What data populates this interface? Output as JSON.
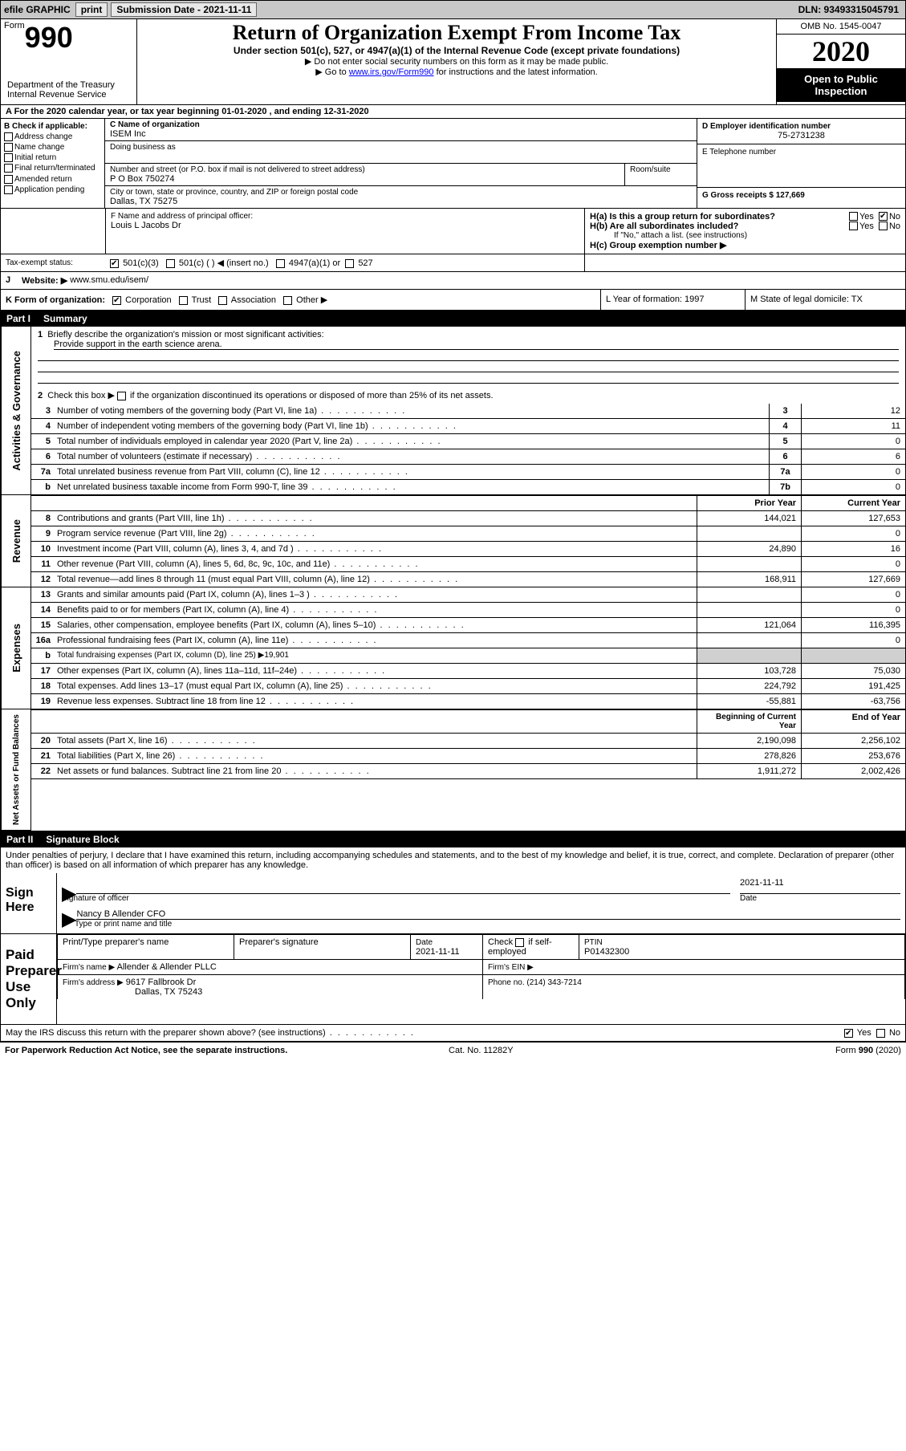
{
  "topbar": {
    "efile": "efile GRAPHIC",
    "print": "print",
    "subdate_label": "Submission Date - 2021-11-11",
    "dln": "DLN: 93493315045791"
  },
  "header": {
    "form_word": "Form",
    "form_num": "990",
    "dept": "Department of the Treasury\nInternal Revenue Service",
    "title": "Return of Organization Exempt From Income Tax",
    "subtitle": "Under section 501(c), 527, or 4947(a)(1) of the Internal Revenue Code (except private foundations)",
    "instruct1": "Do not enter social security numbers on this form as it may be made public.",
    "instruct2_pre": "Go to ",
    "instruct2_link": "www.irs.gov/Form990",
    "instruct2_post": " for instructions and the latest information.",
    "omb": "OMB No. 1545-0047",
    "year": "2020",
    "open": "Open to Public Inspection"
  },
  "sectionA": {
    "text": "A For the 2020 calendar year, or tax year beginning 01-01-2020    , and ending 12-31-2020"
  },
  "boxB": {
    "label": "B Check if applicable:",
    "opts": [
      "Address change",
      "Name change",
      "Initial return",
      "Final return/terminated",
      "Amended return",
      "Application pending"
    ]
  },
  "boxC": {
    "name_label": "C Name of organization",
    "name": "ISEM Inc",
    "dba_label": "Doing business as",
    "addr_label": "Number and street (or P.O. box if mail is not delivered to street address)",
    "room_label": "Room/suite",
    "addr": "P O Box 750274",
    "city_label": "City or town, state or province, country, and ZIP or foreign postal code",
    "city": "Dallas, TX  75275"
  },
  "boxD": {
    "label": "D Employer identification number",
    "val": "75-2731238"
  },
  "boxE": {
    "label": "E Telephone number",
    "val": ""
  },
  "boxG": {
    "label": "G Gross receipts $ 127,669"
  },
  "boxF": {
    "label": "F  Name and address of principal officer:",
    "val": "Louis L Jacobs Dr"
  },
  "boxH": {
    "a_label": "H(a)  Is this a group return for subordinates?",
    "b_label": "H(b)  Are all subordinates included?",
    "b_note": "If \"No,\" attach a list. (see instructions)",
    "c_label": "H(c)  Group exemption number ▶",
    "yes": "Yes",
    "no": "No"
  },
  "taxexempt": {
    "label": "Tax-exempt status:",
    "c3": "501(c)(3)",
    "c": "501(c) (  ) ◀ (insert no.)",
    "a1": "4947(a)(1) or",
    "s527": "527"
  },
  "boxJ": {
    "label": "J",
    "label2": "Website: ▶",
    "val": "www.smu.edu/isem/"
  },
  "boxK": {
    "label": "K Form of organization:",
    "opts": [
      "Corporation",
      "Trust",
      "Association",
      "Other ▶"
    ]
  },
  "boxL": {
    "label": "L Year of formation: 1997"
  },
  "boxM": {
    "label": "M State of legal domicile: TX"
  },
  "part1": {
    "label": "Part I",
    "title": "Summary"
  },
  "summary": {
    "l1_label": "Briefly describe the organization's mission or most significant activities:",
    "l1_val": "Provide support in the earth science arena.",
    "l2": "Check this box ▶        if the organization discontinued its operations or disposed of more than 25% of its net assets.",
    "rows_gov": [
      {
        "n": "3",
        "t": "Number of voting members of the governing body (Part VI, line 1a)",
        "rn": "3",
        "v": "12"
      },
      {
        "n": "4",
        "t": "Number of independent voting members of the governing body (Part VI, line 1b)",
        "rn": "4",
        "v": "11"
      },
      {
        "n": "5",
        "t": "Total number of individuals employed in calendar year 2020 (Part V, line 2a)",
        "rn": "5",
        "v": "0"
      },
      {
        "n": "6",
        "t": "Total number of volunteers (estimate if necessary)",
        "rn": "6",
        "v": "6"
      },
      {
        "n": "7a",
        "t": "Total unrelated business revenue from Part VIII, column (C), line 12",
        "rn": "7a",
        "v": "0"
      },
      {
        "n": "b",
        "t": "Net unrelated business taxable income from Form 990-T, line 39",
        "rn": "7b",
        "v": "0"
      }
    ],
    "hdr_prior": "Prior Year",
    "hdr_curr": "Current Year",
    "rows_rev": [
      {
        "n": "8",
        "t": "Contributions and grants (Part VIII, line 1h)",
        "p": "144,021",
        "c": "127,653"
      },
      {
        "n": "9",
        "t": "Program service revenue (Part VIII, line 2g)",
        "p": "",
        "c": "0"
      },
      {
        "n": "10",
        "t": "Investment income (Part VIII, column (A), lines 3, 4, and 7d )",
        "p": "24,890",
        "c": "16"
      },
      {
        "n": "11",
        "t": "Other revenue (Part VIII, column (A), lines 5, 6d, 8c, 9c, 10c, and 11e)",
        "p": "",
        "c": "0"
      },
      {
        "n": "12",
        "t": "Total revenue—add lines 8 through 11 (must equal Part VIII, column (A), line 12)",
        "p": "168,911",
        "c": "127,669"
      }
    ],
    "rows_exp": [
      {
        "n": "13",
        "t": "Grants and similar amounts paid (Part IX, column (A), lines 1–3 )",
        "p": "",
        "c": "0"
      },
      {
        "n": "14",
        "t": "Benefits paid to or for members (Part IX, column (A), line 4)",
        "p": "",
        "c": "0"
      },
      {
        "n": "15",
        "t": "Salaries, other compensation, employee benefits (Part IX, column (A), lines 5–10)",
        "p": "121,064",
        "c": "116,395"
      },
      {
        "n": "16a",
        "t": "Professional fundraising fees (Part IX, column (A), line 11e)",
        "p": "",
        "c": "0"
      }
    ],
    "l16b": "Total fundraising expenses (Part IX, column (D), line 25) ▶19,901",
    "rows_exp2": [
      {
        "n": "17",
        "t": "Other expenses (Part IX, column (A), lines 11a–11d, 11f–24e)",
        "p": "103,728",
        "c": "75,030"
      },
      {
        "n": "18",
        "t": "Total expenses. Add lines 13–17 (must equal Part IX, column (A), line 25)",
        "p": "224,792",
        "c": "191,425"
      },
      {
        "n": "19",
        "t": "Revenue less expenses. Subtract line 18 from line 12",
        "p": "-55,881",
        "c": "-63,756"
      }
    ],
    "hdr_beg": "Beginning of Current Year",
    "hdr_end": "End of Year",
    "rows_net": [
      {
        "n": "20",
        "t": "Total assets (Part X, line 16)",
        "p": "2,190,098",
        "c": "2,256,102"
      },
      {
        "n": "21",
        "t": "Total liabilities (Part X, line 26)",
        "p": "278,826",
        "c": "253,676"
      },
      {
        "n": "22",
        "t": "Net assets or fund balances. Subtract line 21 from line 20",
        "p": "1,911,272",
        "c": "2,002,426"
      }
    ],
    "side_gov": "Activities & Governance",
    "side_rev": "Revenue",
    "side_exp": "Expenses",
    "side_net": "Net Assets or Fund Balances"
  },
  "part2": {
    "label": "Part II",
    "title": "Signature Block"
  },
  "perjury": "Under penalties of perjury, I declare that I have examined this return, including accompanying schedules and statements, and to the best of my knowledge and belief, it is true, correct, and complete. Declaration of preparer (other than officer) is based on all information of which preparer has any knowledge.",
  "sign": {
    "here": "Sign Here",
    "sig_officer": "Signature of officer",
    "date": "Date",
    "date_val": "2021-11-11",
    "name": "Nancy B Allender CFO",
    "name_lbl": "Type or print name and title"
  },
  "paid": {
    "label": "Paid Preparer Use Only",
    "h1": "Print/Type preparer's name",
    "h2": "Preparer's signature",
    "h3": "Date",
    "h3v": "2021-11-11",
    "h4": "Check         if self-employed",
    "h5": "PTIN",
    "h5v": "P01432300",
    "firm_lbl": "Firm's name     ▶",
    "firm": "Allender & Allender PLLC",
    "ein_lbl": "Firm's EIN ▶",
    "addr_lbl": "Firm's address ▶",
    "addr": "9617 Fallbrook Dr",
    "addr2": "Dallas, TX  75243",
    "phone_lbl": "Phone no. (214) 343-7214"
  },
  "discuss": {
    "txt": "May the IRS discuss this return with the preparer shown above? (see instructions)",
    "yes": "Yes",
    "no": "No"
  },
  "footer": {
    "l": "For Paperwork Reduction Act Notice, see the separate instructions.",
    "m": "Cat. No. 11282Y",
    "r": "Form 990 (2020)"
  },
  "colors": {
    "topbar_bg": "#c8c8c8",
    "shade": "#d0d0d0",
    "link": "#0000ff"
  }
}
